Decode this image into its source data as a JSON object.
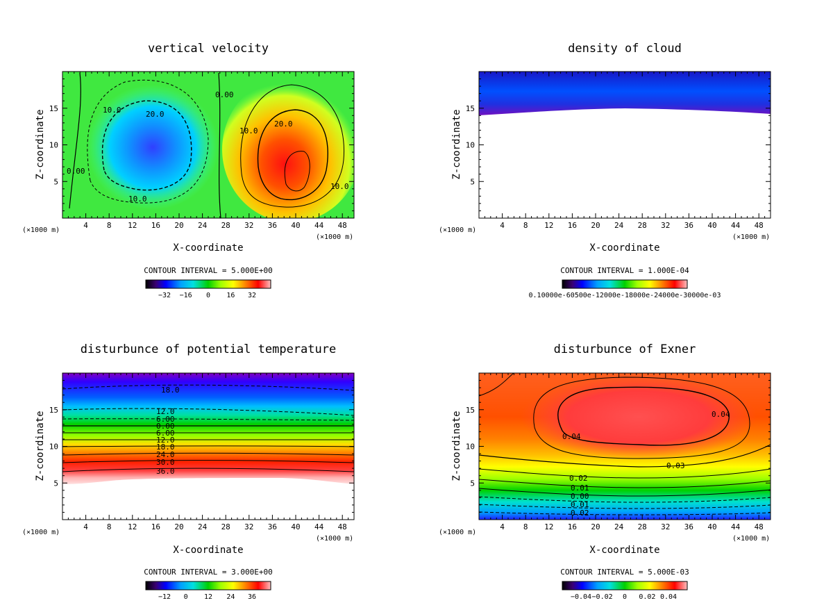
{
  "chart_data": [
    {
      "type": "heatmap",
      "title": "vertical velocity",
      "xlabel": "X-coordinate",
      "ylabel": "Z-coordinate",
      "x_unit": "(×1000 m)",
      "xlim": [
        0,
        50
      ],
      "ylim": [
        0,
        20
      ],
      "xticks": [
        4,
        8,
        12,
        16,
        20,
        24,
        28,
        32,
        36,
        40,
        44,
        48
      ],
      "yticks": [
        5,
        10,
        15
      ],
      "contour_interval": "CONTOUR INTERVAL = 5.000E+00",
      "colorbar_ticks": [
        "−32",
        "−16",
        "0",
        "16",
        "32"
      ],
      "contour_labels": [
        "10.0",
        "20.0",
        "0.00",
        "10.0",
        "20.0",
        "0.00",
        "10.0",
        "10.0"
      ]
    },
    {
      "type": "heatmap",
      "title": "density of cloud",
      "xlabel": "X-coordinate",
      "ylabel": "Z-coordinate",
      "x_unit": "(×1000 m)",
      "xlim": [
        0,
        50
      ],
      "ylim": [
        0,
        20
      ],
      "xticks": [
        4,
        8,
        12,
        16,
        20,
        24,
        28,
        32,
        36,
        40,
        44,
        48
      ],
      "yticks": [
        5,
        10,
        15
      ],
      "contour_interval": "CONTOUR INTERVAL = 1.000E-04",
      "colorbar_ticks": [
        "0.10000e-60500e-12000e-18000e-24000e-30000e-03"
      ],
      "contour_labels": []
    },
    {
      "type": "heatmap",
      "title": "disturbunce of potential temperature",
      "xlabel": "X-coordinate",
      "ylabel": "Z-coordinate",
      "x_unit": "(×1000 m)",
      "xlim": [
        0,
        50
      ],
      "ylim": [
        0,
        20
      ],
      "xticks": [
        4,
        8,
        12,
        16,
        20,
        24,
        28,
        32,
        36,
        40,
        44,
        48
      ],
      "yticks": [
        5,
        10,
        15
      ],
      "contour_interval": "CONTOUR INTERVAL = 3.000E+00",
      "colorbar_ticks": [
        "−12",
        "0",
        "12",
        "24",
        "36"
      ],
      "contour_labels": [
        "18.0",
        "12.0",
        "6.00",
        "0.00",
        "6.00",
        "12.0",
        "18.0",
        "24.0",
        "30.0",
        "36.0"
      ]
    },
    {
      "type": "heatmap",
      "title": "disturbunce of Exner",
      "xlabel": "X-coordinate",
      "ylabel": "Z-coordinate",
      "x_unit": "(×1000 m)",
      "xlim": [
        0,
        50
      ],
      "ylim": [
        0,
        20
      ],
      "xticks": [
        4,
        8,
        12,
        16,
        20,
        24,
        28,
        32,
        36,
        40,
        44,
        48
      ],
      "yticks": [
        5,
        10,
        15
      ],
      "contour_interval": "CONTOUR INTERVAL = 5.000E-03",
      "colorbar_ticks": [
        "−0.04",
        "−0.02",
        "0",
        "0.02",
        "0.04"
      ],
      "contour_labels": [
        "0.04",
        "0.04",
        "0.03",
        "0.02",
        "0.01",
        "0.00",
        "0.01",
        "0.02"
      ]
    }
  ]
}
